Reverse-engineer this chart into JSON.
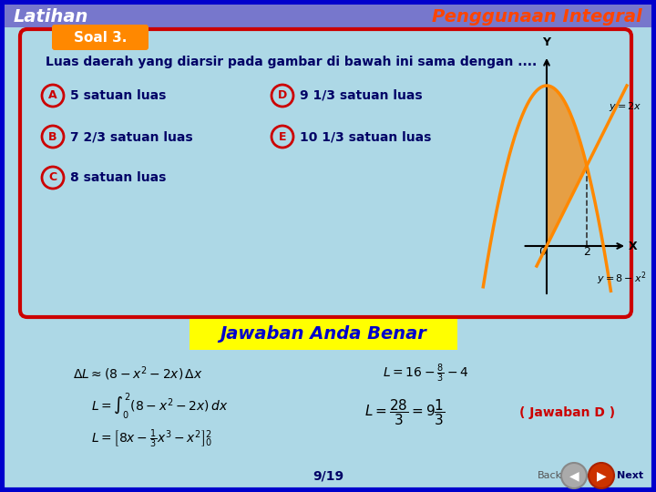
{
  "bg_color": "#add8e6",
  "outer_bg": "#0000cc",
  "header_bg": "#6666cc",
  "title_left": "Latihan",
  "title_right": "Penggunaan Integral",
  "title_left_color": "#ffffff",
  "title_right_color": "#ff4400",
  "soal_label": "Soal 3.",
  "soal_bg": "#ff8800",
  "soal_text_color": "#ffffff",
  "question_text": "Luas daerah yang diarsir pada gambar di bawah ini sama dengan ....",
  "question_color": "#000066",
  "options": [
    {
      "letter": "A",
      "text": "5 satuan luas"
    },
    {
      "letter": "B",
      "text": "7 2/3 satuan luas"
    },
    {
      "letter": "C",
      "text": "8 satuan luas"
    },
    {
      "letter": "D",
      "text": "9 1/3 satuan luas"
    },
    {
      "letter": "E",
      "text": "10 1/3 satuan luas"
    }
  ],
  "option_circle_color": "#cc0000",
  "option_text_color": "#000066",
  "box_border_color": "#cc0000",
  "jawaban_text": "Jawaban Anda Benar",
  "jawaban_bg": "#ffff00",
  "jawaban_text_color": "#0000cc",
  "curve_color": "#ff8800",
  "fill_color": "#ff8800",
  "axis_color": "#000000",
  "dashed_color": "#333333",
  "page_text": "9/19",
  "page_color": "#000066",
  "nav_color_back": "#999999",
  "nav_color_next": "#cc3300"
}
